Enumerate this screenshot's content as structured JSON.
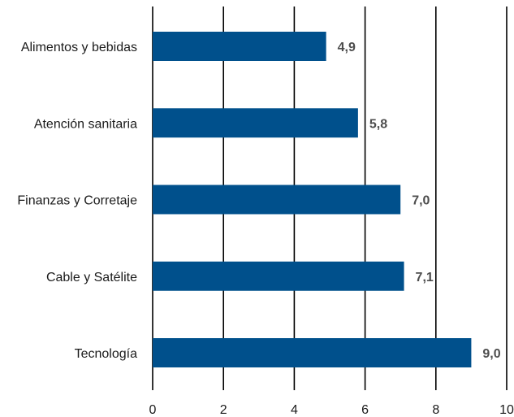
{
  "chart_data": {
    "type": "bar",
    "orientation": "horizontal",
    "categories": [
      "Alimentos y bebidas",
      "Atención sanitaria",
      "Finanzas y Corretaje",
      "Cable y Satélite",
      "Tecnología"
    ],
    "values": [
      4.9,
      5.8,
      7.0,
      7.1,
      9.0
    ],
    "data_labels": [
      "4,9",
      "5,8",
      "7,0",
      "7,1",
      "9,0"
    ],
    "xlim": [
      0,
      10
    ],
    "x_ticks": [
      0,
      2,
      4,
      6,
      8,
      10
    ],
    "x_tick_labels": [
      "0",
      "2",
      "4",
      "6",
      "8",
      "10"
    ],
    "grid": "vertical",
    "legend": "none",
    "title": "",
    "xlabel": "",
    "ylabel": "",
    "bar_color": "#00508c",
    "grid_color": "#000000",
    "data_label_color": "#4d4d4d"
  }
}
